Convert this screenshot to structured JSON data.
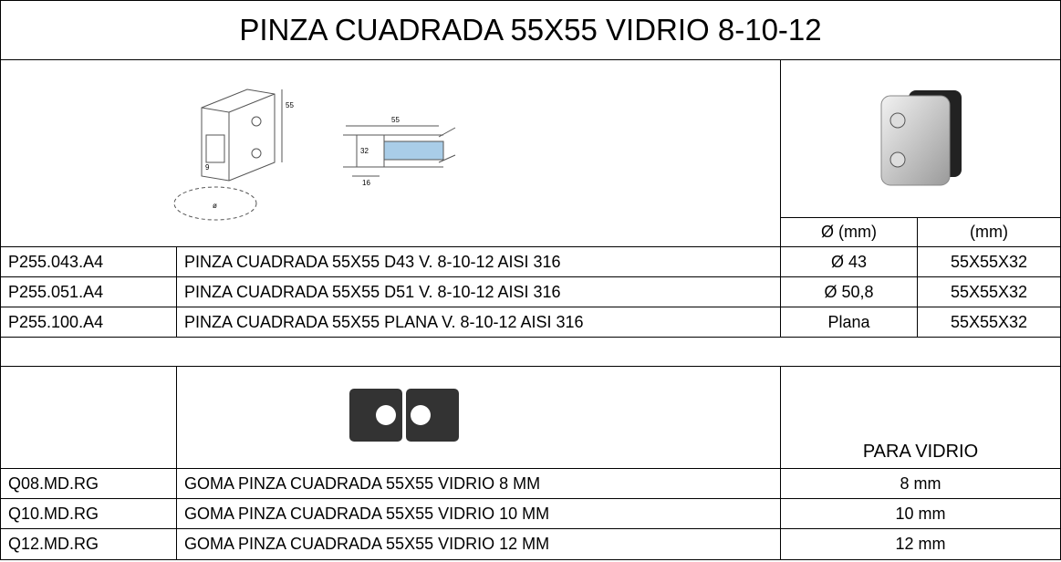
{
  "title": "PINZA CUADRADA 55X55 VIDRIO 8-10-12",
  "drawing_labels": [
    "55",
    "55",
    "32",
    "16",
    "9",
    "ø"
  ],
  "clamp_headers": [
    "Ø (mm)",
    "(mm)"
  ],
  "clamps": [
    [
      "P255.043.A4",
      "PINZA CUADRADA 55X55 D43 V. 8-10-12 AISI 316",
      "Ø 43",
      "55X55X32"
    ],
    [
      "P255.051.A4",
      "PINZA CUADRADA 55X55 D51 V. 8-10-12 AISI 316",
      "Ø 50,8",
      "55X55X32"
    ],
    [
      "P255.100.A4",
      "PINZA CUADRADA 55X55 PLANA V. 8-10-12 AISI 316",
      "Plana",
      "55X55X32"
    ]
  ],
  "gasket_header": "PARA VIDRIO",
  "gaskets": [
    [
      "Q08.MD.RG",
      "GOMA PINZA CUADRADA 55X55 VIDRIO 8 MM",
      "8 mm"
    ],
    [
      "Q10.MD.RG",
      "GOMA PINZA CUADRADA 55X55 VIDRIO 10 MM",
      "10 mm"
    ],
    [
      "Q12.MD.RG",
      "GOMA PINZA CUADRADA 55X55 VIDRIO 12 MM",
      "12 mm"
    ]
  ]
}
